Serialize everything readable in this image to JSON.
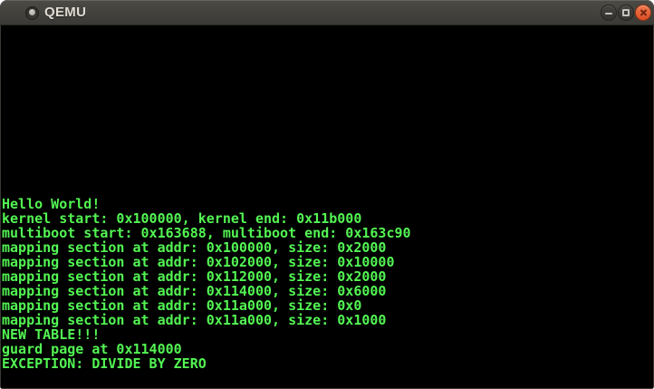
{
  "window": {
    "title": "QEMU"
  },
  "titlebar": {
    "background_top": "#4c4b46",
    "background_bottom": "#3a3935",
    "title_color": "#dfdbd2",
    "controls": [
      {
        "name": "minimize",
        "icon": "minimize-icon"
      },
      {
        "name": "maximize",
        "icon": "maximize-icon"
      },
      {
        "name": "close",
        "icon": "close-icon",
        "color": "#e8542c"
      }
    ],
    "icon": "window-sphere-icon"
  },
  "terminal": {
    "background": "#000000",
    "text_color": "#53f553",
    "lines": [
      "Hello World!",
      "kernel start: 0x100000, kernel end: 0x11b000",
      "multiboot start: 0x163688, multiboot end: 0x163c90",
      "mapping section at addr: 0x100000, size: 0x2000",
      "mapping section at addr: 0x102000, size: 0x10000",
      "mapping section at addr: 0x112000, size: 0x2000",
      "mapping section at addr: 0x114000, size: 0x6000",
      "mapping section at addr: 0x11a000, size: 0x0",
      "mapping section at addr: 0x11a000, size: 0x1000",
      "NEW TABLE!!!",
      "guard page at 0x114000",
      "EXCEPTION: DIVIDE BY ZERO"
    ]
  }
}
